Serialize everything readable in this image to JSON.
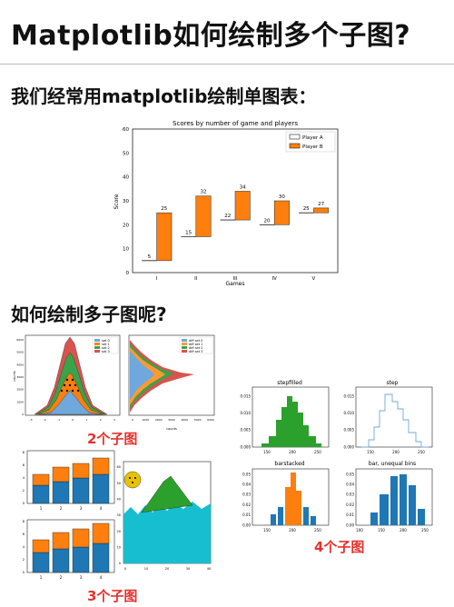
{
  "header": {
    "title": "Matplotlib如何绘制多个子图?",
    "subtitle1": "我们经常用matplotlib绘制单图表：",
    "subtitle2": "如何绘制多子图呢?"
  },
  "captions": {
    "two": "2个子图",
    "three": "3个子图",
    "four": "4个子图"
  },
  "colors": {
    "orange": "#ff7f0e",
    "blue": "#1f77b4",
    "green": "#2ca02c",
    "red": "#d62728",
    "red_caption": "#e5322d"
  },
  "chart_data": [
    {
      "type": "bar",
      "title": "Scores by number of game and players",
      "xlabel": "Games",
      "ylabel": "Score",
      "categories": [
        "I",
        "II",
        "III",
        "IV",
        "V"
      ],
      "ylim": [
        0,
        60
      ],
      "yticks": [
        "0",
        "10",
        "20",
        "30",
        "40",
        "50",
        "60"
      ],
      "series": [
        {
          "name": "Player A",
          "values": [
            5,
            15,
            22,
            20,
            25
          ]
        },
        {
          "name": "Player B",
          "values": [
            25,
            32,
            34,
            30,
            27
          ]
        }
      ],
      "legend": "top-right"
    },
    {
      "type": "bar",
      "title": "stepfilled",
      "yticks": [
        "0.000",
        "0.005",
        "0.010",
        "0.015"
      ],
      "xticks": [
        "150",
        "200",
        "250"
      ]
    },
    {
      "type": "line",
      "title": "step",
      "yticks": [
        "0.000",
        "0.005",
        "0.010",
        "0.015"
      ],
      "xticks": [
        "150",
        "200",
        "250"
      ]
    },
    {
      "type": "bar",
      "title": "barstacked",
      "yticks": [
        "0.00",
        "0.01",
        "0.02",
        "0.03",
        "0.04",
        "0.05"
      ],
      "xticks": [
        "150",
        "200",
        "250"
      ]
    },
    {
      "type": "bar",
      "title": "bar, unequal bins",
      "yticks": [
        "0.00",
        "0.01",
        "0.02",
        "0.03",
        "0.04",
        "0.05"
      ],
      "xticks": [
        "100",
        "150",
        "200",
        "250"
      ]
    },
    {
      "type": "bar",
      "legend_entries": [
        "set 0",
        "set 1",
        "set 2",
        "set 3"
      ],
      "ylabel": "counts",
      "yticks": [
        "0",
        "1000",
        "2000",
        "3000",
        "4000",
        "5000",
        "6000"
      ],
      "xticks": [
        "-3",
        "-2",
        "-1",
        "0",
        "1",
        "2",
        "3"
      ]
    },
    {
      "type": "bar",
      "legend_entries": [
        "diff set 0",
        "diff set 1",
        "diff set 2",
        "diff set 3"
      ],
      "xlabel": "counts",
      "xticks": [
        "0",
        "1000",
        "2000",
        "3000",
        "4000",
        "5000",
        "6000"
      ]
    },
    {
      "type": "bar",
      "categories": [
        "1",
        "2",
        "3",
        "4"
      ],
      "yticks": [
        "0",
        "2",
        "4",
        "6",
        "8"
      ],
      "series": [
        {
          "values": [
            3,
            3,
            3.5,
            4
          ]
        },
        {
          "values": [
            2,
            3,
            3.5,
            4
          ]
        }
      ]
    },
    {
      "type": "area",
      "xticks": [
        "0",
        "10",
        "20",
        "30",
        "40"
      ],
      "yticks": [
        "0",
        "10",
        "20",
        "30",
        "40",
        "50",
        "60"
      ]
    },
    {
      "type": "bar",
      "categories": [
        "1",
        "2",
        "3",
        "4"
      ],
      "yticks": [
        "0",
        "2",
        "4",
        "6",
        "8"
      ]
    }
  ]
}
